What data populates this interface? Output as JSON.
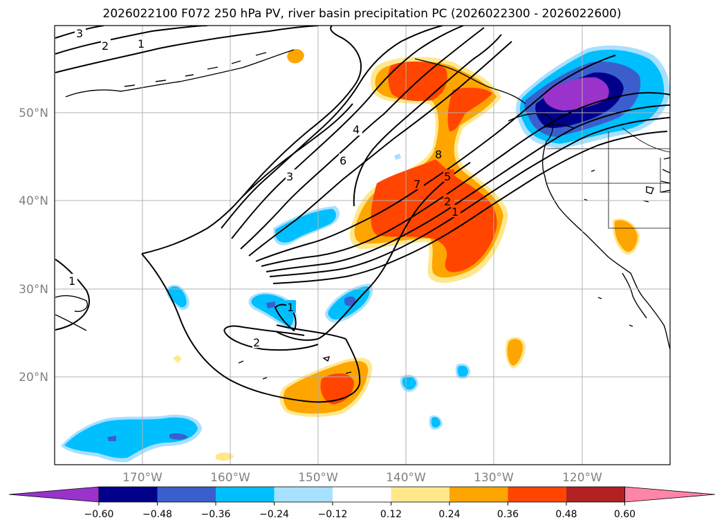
{
  "title": "2026022100 F072 250 hPa PV, river basin precipitation PC (2026022300 - 2026022600)",
  "lat_labels": [
    "50°N",
    "40°N",
    "30°N",
    "20°N"
  ],
  "lon_labels": [
    "170°W",
    "160°W",
    "150°W",
    "140°W",
    "130°W",
    "120°W"
  ],
  "contour_labels": [
    "3",
    "2",
    "1",
    "4",
    "6",
    "3",
    "8",
    "7",
    "5",
    "2",
    "1",
    "1",
    "1",
    "2"
  ],
  "colorbar": {
    "ticks": [
      "−0.60",
      "−0.48",
      "−0.36",
      "−0.24",
      "−0.12",
      "0.12",
      "0.24",
      "0.36",
      "0.48",
      "0.60"
    ],
    "colors": [
      "#9933cc",
      "#00008b",
      "#3a5fcd",
      "#00bfff",
      "#a8e0ff",
      "#ffffff",
      "#ffe88c",
      "#ffa500",
      "#ff4500",
      "#b22222",
      "#ff85a8"
    ]
  },
  "shading_colors": {
    "light_blue": "#a8e0ff",
    "blue": "#00bfff",
    "royal": "#3a5fcd",
    "navy": "#00008b",
    "purple": "#9933cc",
    "yellow": "#ffe88c",
    "orange": "#ffa500",
    "red_orange": "#ff4500"
  }
}
